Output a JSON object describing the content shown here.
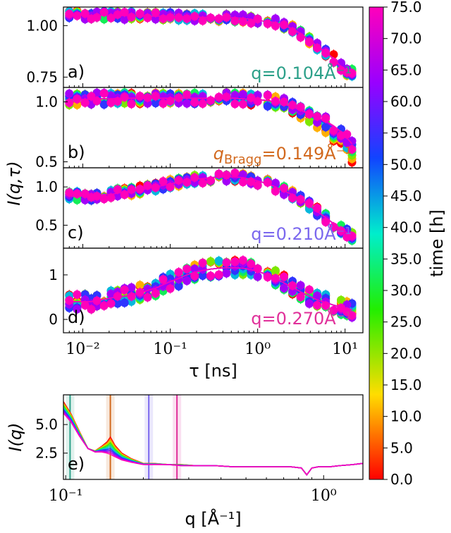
{
  "chart_data": [
    {
      "type": "scatter",
      "panel": "a)",
      "annotation": "q=0.104Å⁻¹",
      "annotation_color": "#2ca089",
      "xscale": "log",
      "xlim": [
        0.006,
        16
      ],
      "ylim": [
        0.7,
        1.09
      ],
      "yticks": [
        "1.00",
        "0.75"
      ],
      "ytick_values": [
        1.0,
        0.75
      ],
      "tau": [
        0.007,
        0.0086,
        0.0106,
        0.0125,
        0.0145,
        0.0175,
        0.021,
        0.025,
        0.03,
        0.036,
        0.045,
        0.055,
        0.068,
        0.083,
        0.1,
        0.125,
        0.155,
        0.19,
        0.235,
        0.29,
        0.36,
        0.44,
        0.55,
        0.68,
        0.84,
        1.0,
        1.3,
        1.6,
        2.0,
        2.5,
        3.1,
        3.9,
        4.8,
        6.0,
        7.4,
        9.0,
        10.5,
        12.0
      ],
      "profile": [
        1.055,
        1.055,
        1.05,
        1.05,
        1.05,
        1.05,
        1.05,
        1.05,
        1.048,
        1.048,
        1.048,
        1.046,
        1.046,
        1.046,
        1.045,
        1.044,
        1.043,
        1.042,
        1.04,
        1.04,
        1.04,
        1.04,
        1.038,
        1.036,
        1.03,
        1.025,
        1.02,
        1.015,
        1.0,
        0.985,
        0.96,
        0.93,
        0.9,
        0.87,
        0.84,
        0.8,
        0.77,
        0.77
      ],
      "spread": 0.02
    },
    {
      "type": "scatter",
      "panel": "b)",
      "annotation": "q_Bragg=0.149Å⁻¹",
      "annotation_main": "q",
      "annotation_sub": "Bragg",
      "annotation_rest": "=0.149Å⁻¹",
      "annotation_color": "#d2691e",
      "xscale": "log",
      "xlim": [
        0.006,
        16
      ],
      "ylim": [
        0.45,
        1.12
      ],
      "yticks": [
        "1.0",
        "0.5"
      ],
      "ytick_values": [
        1.0,
        0.5
      ],
      "tau": [
        0.007,
        0.0086,
        0.0106,
        0.0125,
        0.0145,
        0.0175,
        0.021,
        0.025,
        0.03,
        0.036,
        0.045,
        0.055,
        0.068,
        0.083,
        0.1,
        0.125,
        0.155,
        0.19,
        0.235,
        0.29,
        0.36,
        0.44,
        0.55,
        0.68,
        0.84,
        1.0,
        1.3,
        1.6,
        2.0,
        2.5,
        3.1,
        3.9,
        4.8,
        6.0,
        7.4,
        9.0,
        10.5,
        12.0
      ],
      "profile": [
        1.02,
        1.02,
        1.02,
        1.025,
        1.025,
        1.025,
        1.025,
        1.03,
        1.03,
        1.03,
        1.03,
        1.03,
        1.03,
        1.03,
        1.03,
        1.03,
        1.03,
        1.03,
        1.03,
        1.03,
        1.03,
        1.03,
        1.03,
        1.025,
        1.02,
        1.02,
        1.01,
        1.0,
        0.98,
        0.96,
        0.93,
        0.9,
        0.87,
        0.84,
        0.8,
        0.75,
        0.7,
        0.65
      ],
      "spread": 0.05
    },
    {
      "type": "scatter",
      "panel": "c)",
      "annotation": "q=0.210Å⁻¹",
      "annotation_color": "#7b68ee",
      "xscale": "log",
      "xlim": [
        0.006,
        16
      ],
      "ylim": [
        0.2,
        1.25
      ],
      "yticks": [
        "1.0",
        "0.5"
      ],
      "ytick_values": [
        1.0,
        0.5
      ],
      "tau": [
        0.007,
        0.0086,
        0.0106,
        0.0125,
        0.0145,
        0.0175,
        0.021,
        0.025,
        0.03,
        0.036,
        0.045,
        0.055,
        0.068,
        0.083,
        0.1,
        0.125,
        0.155,
        0.19,
        0.235,
        0.29,
        0.36,
        0.44,
        0.55,
        0.68,
        0.84,
        1.0,
        1.3,
        1.6,
        2.0,
        2.5,
        3.1,
        3.9,
        4.8,
        6.0,
        7.4,
        9.0,
        10.5,
        12.0
      ],
      "profile": [
        0.88,
        0.88,
        0.88,
        0.88,
        0.89,
        0.9,
        0.9,
        0.92,
        0.93,
        0.94,
        0.96,
        0.98,
        1.0,
        1.02,
        1.04,
        1.06,
        1.08,
        1.1,
        1.11,
        1.12,
        1.13,
        1.13,
        1.13,
        1.12,
        1.1,
        1.08,
        1.04,
        1.0,
        0.95,
        0.9,
        0.84,
        0.76,
        0.68,
        0.6,
        0.52,
        0.45,
        0.4,
        0.35
      ],
      "spread": 0.06
    },
    {
      "type": "scatter",
      "panel": "d)",
      "annotation": "q=0.270Å⁻¹",
      "annotation_color": "#e0309a",
      "xscale": "log",
      "xlim": [
        0.006,
        16
      ],
      "ylim": [
        -0.3,
        1.6
      ],
      "yticks": [
        "1",
        "0"
      ],
      "ytick_values": [
        1,
        0
      ],
      "xticks": [
        "10⁻²",
        "10⁻¹",
        "10⁰",
        "10¹"
      ],
      "xtick_values": [
        0.01,
        0.1,
        1,
        10
      ],
      "xlabel": "τ [ns]",
      "tau": [
        0.007,
        0.0086,
        0.0106,
        0.0125,
        0.0145,
        0.0175,
        0.021,
        0.025,
        0.03,
        0.036,
        0.045,
        0.055,
        0.068,
        0.083,
        0.1,
        0.125,
        0.155,
        0.19,
        0.235,
        0.29,
        0.36,
        0.44,
        0.55,
        0.68,
        0.84,
        1.0,
        1.3,
        1.6,
        2.0,
        2.5,
        3.1,
        3.9,
        4.8,
        6.0,
        7.4,
        9.0,
        10.5,
        12.0
      ],
      "profile": [
        0.4,
        0.4,
        0.4,
        0.4,
        0.42,
        0.45,
        0.48,
        0.5,
        0.52,
        0.55,
        0.6,
        0.65,
        0.7,
        0.78,
        0.85,
        0.92,
        1.0,
        1.06,
        1.1,
        1.13,
        1.15,
        1.16,
        1.16,
        1.15,
        1.12,
        1.08,
        1.0,
        0.92,
        0.82,
        0.72,
        0.62,
        0.52,
        0.44,
        0.38,
        0.32,
        0.28,
        0.25,
        0.22
      ],
      "spread": 0.18
    },
    {
      "type": "line",
      "panel": "e)",
      "xscale": "log",
      "xlim": [
        0.098,
        1.42
      ],
      "ylim": [
        0.2,
        7.6
      ],
      "yticks": [
        "5.0",
        "2.5"
      ],
      "ytick_values": [
        5.0,
        2.5
      ],
      "xticks": [
        "10⁻¹",
        "10⁰"
      ],
      "xtick_values": [
        0.1,
        1
      ],
      "xlabel": "q [Å⁻¹]",
      "ylabel": "I(q)",
      "q": [
        0.098,
        0.105,
        0.113,
        0.122,
        0.13,
        0.138,
        0.145,
        0.149,
        0.155,
        0.165,
        0.18,
        0.2,
        0.22,
        0.25,
        0.28,
        0.32,
        0.38,
        0.45,
        0.55,
        0.65,
        0.75,
        0.82,
        0.86,
        0.9,
        0.95,
        1.05,
        1.15,
        1.3,
        1.42
      ],
      "I_early": [
        7.0,
        5.9,
        4.4,
        2.9,
        2.7,
        3.1,
        3.5,
        3.9,
        3.2,
        2.5,
        2.0,
        1.6,
        1.6,
        1.5,
        1.5,
        1.4,
        1.4,
        1.3,
        1.3,
        1.3,
        1.3,
        1.2,
        0.6,
        1.2,
        1.3,
        1.3,
        1.4,
        1.5,
        1.6
      ],
      "I_late": [
        6.0,
        5.2,
        4.0,
        2.9,
        2.6,
        2.6,
        2.5,
        2.4,
        2.2,
        1.9,
        1.7,
        1.5,
        1.5,
        1.5,
        1.4,
        1.4,
        1.4,
        1.3,
        1.3,
        1.3,
        1.3,
        1.2,
        0.6,
        1.2,
        1.3,
        1.3,
        1.4,
        1.5,
        1.6
      ],
      "markers": [
        {
          "q": 0.104,
          "color": "#2ca089"
        },
        {
          "q": 0.149,
          "color": "#d2691e"
        },
        {
          "q": 0.21,
          "color": "#7b68ee"
        },
        {
          "q": 0.27,
          "color": "#e0309a"
        }
      ]
    }
  ],
  "shared": {
    "ylabel": "I(q,τ)"
  },
  "colorbar": {
    "label": "time [h]",
    "min": 0.0,
    "max": 75.0,
    "ticks": [
      "75.0",
      "70.0",
      "65.0",
      "60.0",
      "55.0",
      "50.0",
      "45.0",
      "40.0",
      "35.0",
      "30.0",
      "25.0",
      "20.0",
      "15.0",
      "10.0",
      "5.0",
      "0.0"
    ],
    "tick_values": [
      75,
      70,
      65,
      60,
      55,
      50,
      45,
      40,
      35,
      30,
      25,
      20,
      15,
      10,
      5,
      0
    ],
    "colormap": "gist_rainbow (red → yellow → green → cyan → blue → magenta)"
  }
}
